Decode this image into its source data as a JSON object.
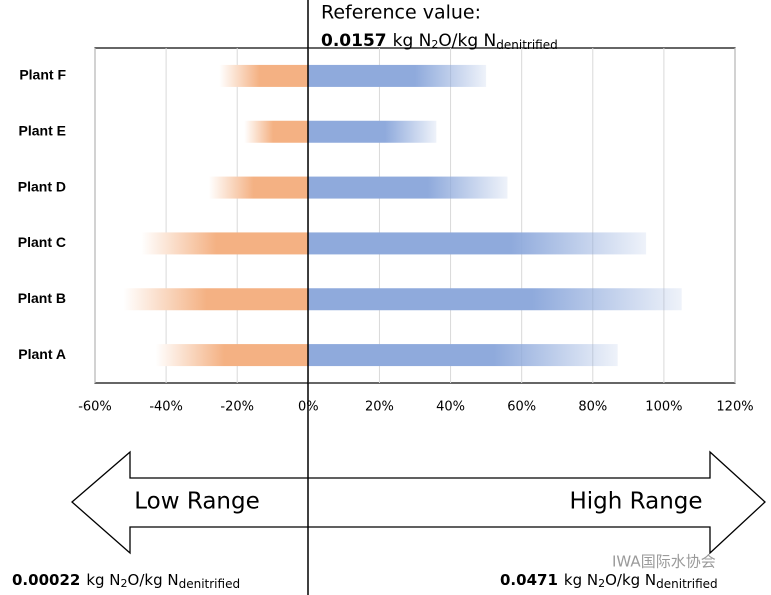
{
  "chart_data": {
    "type": "diverging-bar",
    "categories": [
      "Plant F",
      "Plant E",
      "Plant D",
      "Plant C",
      "Plant B",
      "Plant A"
    ],
    "series": [
      {
        "color": "#f4b183",
        "values": [
          -25,
          -18,
          -28,
          -47,
          -52,
          -43
        ]
      },
      {
        "color": "#8faadc",
        "values": [
          50,
          36,
          56,
          95,
          105,
          87
        ]
      }
    ],
    "xlim": [
      -60,
      120
    ],
    "xticks": [
      {
        "value": -60,
        "label": "-60%"
      },
      {
        "value": -40,
        "label": "-40%"
      },
      {
        "value": -20,
        "label": "-20%"
      },
      {
        "value": 0,
        "label": "0%"
      },
      {
        "value": 20,
        "label": "20%"
      },
      {
        "value": 40,
        "label": "40%"
      },
      {
        "value": 60,
        "label": "60%"
      },
      {
        "value": 80,
        "label": "80%"
      },
      {
        "value": 100,
        "label": "100%"
      },
      {
        "value": 120,
        "label": "120%"
      }
    ],
    "grid": true,
    "reference": {
      "label": "Reference value:",
      "value": "0.0157",
      "unit": [
        "kg N",
        "2",
        "O/kg N",
        "denitrified"
      ]
    },
    "low": {
      "arrow": "Low Range",
      "value": "0.00022",
      "unit": [
        "kg N",
        "2",
        "O/kg N",
        "denitrified"
      ]
    },
    "high": {
      "arrow": "High Range",
      "value": "0.0471",
      "unit": [
        "kg N",
        "2",
        "O/kg N",
        "denitrified"
      ]
    },
    "watermark": "IWA国际水协会"
  }
}
